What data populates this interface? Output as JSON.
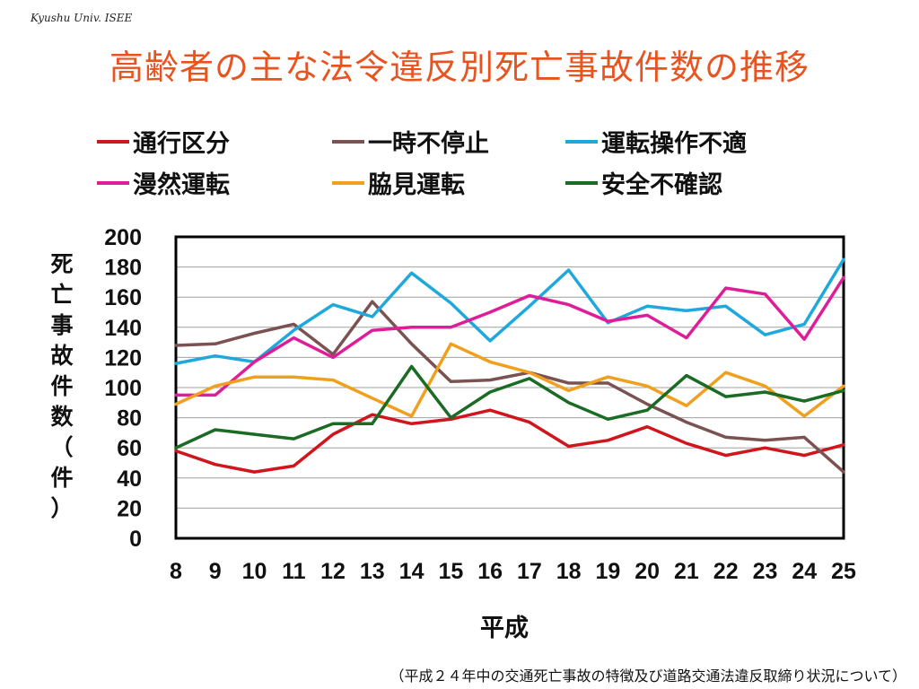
{
  "header": {
    "org": "Kyushu Univ. ISEE",
    "title": "高齢者の主な法令違反別死亡事故件数の推移"
  },
  "footer": {
    "source": "（平成２４年中の交通死亡事故の特徴及び道路交通法違反取締り状況について）"
  },
  "chart_data": {
    "type": "line",
    "xlabel": "平成",
    "ylabel": "死亡事故件数（件）",
    "categories": [
      "8",
      "9",
      "10",
      "11",
      "12",
      "13",
      "14",
      "15",
      "16",
      "17",
      "18",
      "19",
      "20",
      "21",
      "22",
      "23",
      "24",
      "25"
    ],
    "ylim": [
      0,
      200
    ],
    "yticks": [
      0,
      20,
      40,
      60,
      80,
      100,
      120,
      140,
      160,
      180,
      200
    ],
    "grid": true,
    "legend_position": "top",
    "series": [
      {
        "name": "通行区分",
        "color": "#d0151c",
        "values": [
          58,
          49,
          44,
          48,
          69,
          82,
          76,
          79,
          85,
          77,
          61,
          65,
          74,
          63,
          55,
          60,
          55,
          62
        ]
      },
      {
        "name": "一時不停止",
        "color": "#7b5252",
        "values": [
          128,
          129,
          136,
          142,
          122,
          157,
          129,
          104,
          105,
          110,
          103,
          103,
          89,
          77,
          67,
          65,
          67,
          44
        ]
      },
      {
        "name": "運転操作不適",
        "color": "#1fa8dc",
        "values": [
          116,
          121,
          117,
          138,
          155,
          147,
          176,
          156,
          131,
          154,
          178,
          143,
          154,
          151,
          154,
          135,
          142,
          185
        ]
      },
      {
        "name": "漫然運転",
        "color": "#de1e99",
        "values": [
          95,
          95,
          117,
          133,
          120,
          138,
          140,
          140,
          150,
          161,
          155,
          144,
          148,
          133,
          166,
          162,
          132,
          173
        ]
      },
      {
        "name": "脇見運転",
        "color": "#f0a01e",
        "values": [
          89,
          101,
          107,
          107,
          105,
          93,
          81,
          129,
          117,
          110,
          98,
          107,
          101,
          88,
          110,
          101,
          81,
          101
        ]
      },
      {
        "name": "安全不確認",
        "color": "#1a6b23",
        "values": [
          60,
          72,
          69,
          66,
          76,
          76,
          114,
          80,
          97,
          106,
          90,
          79,
          85,
          108,
          94,
          97,
          91,
          98
        ]
      }
    ]
  }
}
